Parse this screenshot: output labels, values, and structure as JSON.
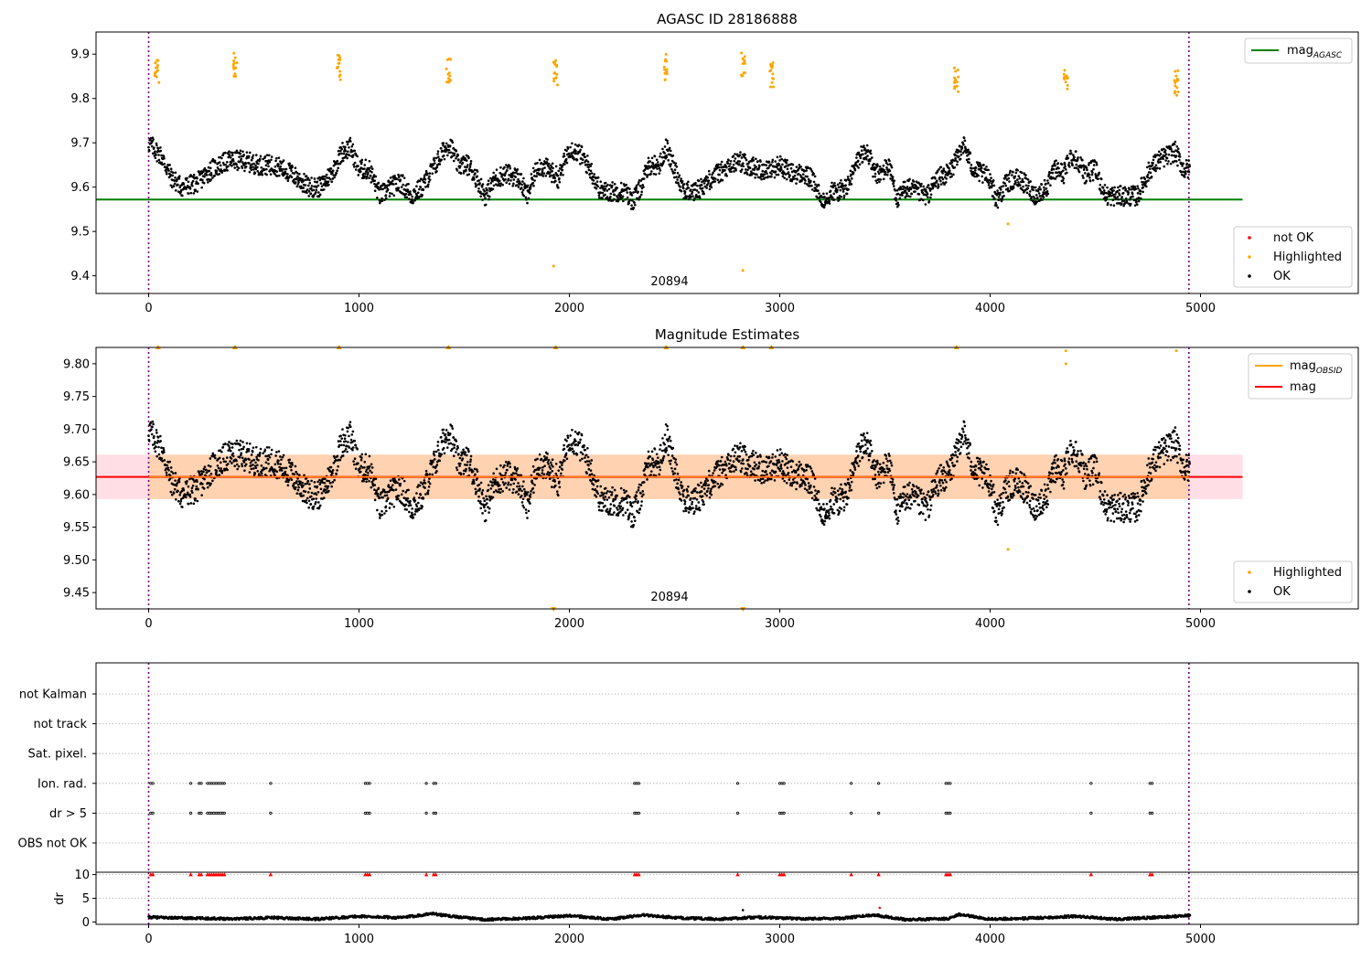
{
  "chart_data": [
    {
      "type": "scatter",
      "title": "AGASC ID 28186888",
      "xlabel": "",
      "ylabel": "",
      "xlim": [
        -250,
        5750
      ],
      "ylim": [
        9.36,
        9.95
      ],
      "xticks": [
        0,
        1000,
        2000,
        3000,
        4000,
        5000
      ],
      "yticks": [
        9.4,
        9.5,
        9.6,
        9.7,
        9.8,
        9.9
      ],
      "vlines": [
        0,
        4945
      ],
      "annotation": {
        "text": "20894",
        "x": 2470,
        "y": 9.375
      },
      "legend_upper": {
        "position": "upper right",
        "items": [
          {
            "label": "mag",
            "sub": "AGASC",
            "color": "#008000"
          }
        ]
      },
      "legend_lower": {
        "position": "lower right",
        "items": [
          {
            "label": "not OK",
            "color": "#ff0000"
          },
          {
            "label": "Highlighted",
            "color": "#ffa500"
          },
          {
            "label": "OK",
            "color": "#000000"
          }
        ]
      },
      "mag_line": {
        "value": 9.572,
        "x_range": [
          -250,
          5200
        ],
        "color": "#008000"
      },
      "series": [
        {
          "name": "OK",
          "color": "#000000",
          "segments": [
            {
              "x": [
                0,
                60,
                110,
                160,
                230,
                300,
                380,
                450,
                520,
                600,
                680,
                760,
                820,
                880,
                920,
                960,
                1000,
                1050,
                1100,
                1150,
                1200,
                1250,
                1300,
                1350,
                1400,
                1430,
                1470,
                1520,
                1560,
                1600,
                1650,
                1700,
                1760,
                1800,
                1850,
                1900,
                1950,
                2000,
                2060,
                2100,
                2150,
                2200,
                2260,
                2300,
                2330,
                2380,
                2430,
                2460,
                2500,
                2550,
                2600,
                2650,
                2700,
                2750,
                2800,
                2850,
                2900,
                2960,
                3000,
                3060,
                3100,
                3150,
                3200,
                3250,
                3280,
                3320,
                3380,
                3420,
                3450,
                3480,
                3520,
                3560,
                3600,
                3650,
                3700,
                3750,
                3800,
                3840,
                3870,
                3920,
                3960,
                4000,
                4030,
                4080,
                4120,
                4160,
                4220,
                4270,
                4310,
                4350,
                4380,
                4420,
                4450,
                4500,
                4550,
                4600,
                4650,
                4700,
                4760,
                4800,
                4840,
                4880,
                4920,
                4950
              ],
              "y": [
                9.7,
                9.67,
                9.62,
                9.6,
                9.61,
                9.64,
                9.66,
                9.66,
                9.65,
                9.65,
                9.63,
                9.6,
                9.6,
                9.64,
                9.68,
                9.69,
                9.64,
                9.64,
                9.58,
                9.6,
                9.61,
                9.58,
                9.6,
                9.64,
                9.68,
                9.7,
                9.65,
                9.65,
                9.62,
                9.58,
                9.62,
                9.63,
                9.62,
                9.58,
                9.65,
                9.64,
                9.62,
                9.69,
                9.67,
                9.64,
                9.59,
                9.59,
                9.59,
                9.57,
                9.59,
                9.65,
                9.65,
                9.69,
                9.64,
                9.59,
                9.59,
                9.61,
                9.63,
                9.64,
                9.66,
                9.65,
                9.64,
                9.64,
                9.65,
                9.63,
                9.63,
                9.62,
                9.57,
                9.59,
                9.59,
                9.6,
                9.67,
                9.68,
                9.63,
                9.63,
                9.65,
                9.57,
                9.6,
                9.59,
                9.58,
                9.62,
                9.63,
                9.66,
                9.7,
                9.64,
                9.63,
                9.62,
                9.57,
                9.61,
                9.62,
                9.61,
                9.58,
                9.6,
                9.64,
                9.63,
                9.67,
                9.66,
                9.63,
                9.64,
                9.58,
                9.58,
                9.58,
                9.58,
                9.64,
                9.66,
                9.67,
                9.68,
                9.64,
                9.64
              ]
            }
          ]
        },
        {
          "name": "Highlighted",
          "color": "#ffa500",
          "points": [
            {
              "x": 40,
              "y": 9.865
            },
            {
              "x": 410,
              "y": 9.873
            },
            {
              "x": 905,
              "y": 9.87
            },
            {
              "x": 1425,
              "y": 9.865
            },
            {
              "x": 1935,
              "y": 9.86
            },
            {
              "x": 1925,
              "y": 9.422
            },
            {
              "x": 2460,
              "y": 9.87
            },
            {
              "x": 2825,
              "y": 9.879
            },
            {
              "x": 2825,
              "y": 9.412
            },
            {
              "x": 2960,
              "y": 9.855
            },
            {
              "x": 3840,
              "y": 9.845
            },
            {
              "x": 4085,
              "y": 9.517
            },
            {
              "x": 4360,
              "y": 9.84
            },
            {
              "x": 4885,
              "y": 9.835
            }
          ]
        }
      ]
    },
    {
      "type": "scatter",
      "title": "Magnitude Estimates",
      "xlabel": "",
      "ylabel": "",
      "xlim": [
        -250,
        5750
      ],
      "ylim": [
        9.425,
        9.825
      ],
      "xticks": [
        0,
        1000,
        2000,
        3000,
        4000,
        5000
      ],
      "yticks": [
        9.45,
        9.5,
        9.55,
        9.6,
        9.65,
        9.7,
        9.75,
        9.8
      ],
      "vlines": [
        0,
        4945
      ],
      "annotation": {
        "text": "20894",
        "x": 2470,
        "y": 9.436
      },
      "legend_upper": {
        "position": "upper right",
        "items": [
          {
            "label": "mag",
            "sub": "OBSID",
            "color": "#ffa500"
          },
          {
            "label": "mag",
            "color": "#ff0000"
          }
        ]
      },
      "legend_lower": {
        "position": "lower right",
        "items": [
          {
            "label": "Highlighted",
            "color": "#ffa500"
          },
          {
            "label": "OK",
            "color": "#000000"
          }
        ]
      },
      "mag_line": {
        "value": 9.627,
        "x_range": [
          -250,
          5200
        ],
        "color": "#ff0000"
      },
      "mag_band": {
        "low": 9.593,
        "high": 9.661,
        "x_range": [
          -250,
          5200
        ]
      },
      "obsid_band": {
        "low": 9.593,
        "high": 9.661,
        "x_range": [
          0,
          4945
        ]
      },
      "series": [
        {
          "name": "OK",
          "color": "#000000"
        },
        {
          "name": "Highlighted",
          "color": "#ffa500",
          "points": [
            {
              "x": 45,
              "y": 9.825
            },
            {
              "x": 410,
              "y": 9.825
            },
            {
              "x": 905,
              "y": 9.825
            },
            {
              "x": 1425,
              "y": 9.825
            },
            {
              "x": 1935,
              "y": 9.825
            },
            {
              "x": 1925,
              "y": 9.425
            },
            {
              "x": 2460,
              "y": 9.825
            },
            {
              "x": 2825,
              "y": 9.825
            },
            {
              "x": 2825,
              "y": 9.425
            },
            {
              "x": 2960,
              "y": 9.825
            },
            {
              "x": 3840,
              "y": 9.825
            },
            {
              "x": 4085,
              "y": 9.516
            },
            {
              "x": 4360,
              "y": 9.82
            },
            {
              "x": 4360,
              "y": 9.8
            },
            {
              "x": 4885,
              "y": 9.82
            }
          ]
        }
      ]
    },
    {
      "type": "scatter",
      "title": "",
      "xlim": [
        -250,
        5750
      ],
      "categories": [
        "not Kalman",
        "not track",
        "Sat. pixel.",
        "Ion. rad.",
        "dr > 5",
        "OBS not OK"
      ],
      "vlines": [
        0,
        4945
      ],
      "flags": {
        "Ion. rad.": [
          10,
          20,
          200,
          240,
          250,
          280,
          290,
          300,
          310,
          320,
          330,
          340,
          350,
          360,
          580,
          1030,
          1040,
          1050,
          1320,
          1355,
          1365,
          2310,
          2320,
          2330,
          2800,
          3000,
          3010,
          3020,
          3340,
          3470,
          3790,
          3800,
          3810,
          4480,
          4760,
          4770
        ],
        "dr > 5": [
          10,
          20,
          200,
          240,
          250,
          280,
          290,
          300,
          310,
          320,
          330,
          340,
          350,
          360,
          580,
          1030,
          1040,
          1050,
          1320,
          1355,
          1365,
          2310,
          2320,
          2330,
          2800,
          3000,
          3010,
          3020,
          3340,
          3470,
          3790,
          3800,
          3810,
          4480,
          4760,
          4770
        ]
      }
    },
    {
      "type": "scatter",
      "title": "",
      "xlabel": "",
      "ylabel": "dr",
      "xlim": [
        -250,
        5750
      ],
      "ylim": [
        -0.5,
        10.5
      ],
      "xticks": [
        0,
        1000,
        2000,
        3000,
        4000,
        5000
      ],
      "yticks": [
        0,
        5,
        10
      ],
      "vlines": [
        0,
        4945
      ],
      "clipped_points": [
        10,
        20,
        200,
        240,
        250,
        280,
        290,
        300,
        310,
        320,
        330,
        340,
        350,
        360,
        580,
        1030,
        1040,
        1050,
        1320,
        1355,
        1365,
        2310,
        2320,
        2330,
        2800,
        3000,
        3010,
        3020,
        3340,
        3470,
        3790,
        3800,
        3810,
        4480,
        4760,
        4770
      ],
      "outliers": [
        {
          "x": 3475,
          "y": 3.0
        },
        {
          "x": 2825,
          "y": 2.5
        }
      ],
      "series": [
        {
          "name": "OK",
          "color": "#000000",
          "x": [
            0,
            200,
            400,
            600,
            800,
            1000,
            1200,
            1350,
            1400,
            1600,
            1800,
            2000,
            2200,
            2350,
            2500,
            2700,
            2900,
            3100,
            3300,
            3450,
            3600,
            3800,
            3850,
            4000,
            4200,
            4400,
            4600,
            4800,
            4950
          ],
          "y": [
            1.0,
            0.8,
            0.7,
            0.9,
            0.6,
            1.2,
            0.9,
            1.8,
            1.4,
            0.5,
            0.8,
            1.3,
            0.6,
            1.5,
            0.9,
            0.6,
            1.0,
            0.7,
            0.8,
            1.5,
            0.5,
            0.7,
            1.6,
            0.6,
            0.8,
            1.2,
            0.6,
            1.0,
            1.4
          ]
        }
      ]
    }
  ]
}
